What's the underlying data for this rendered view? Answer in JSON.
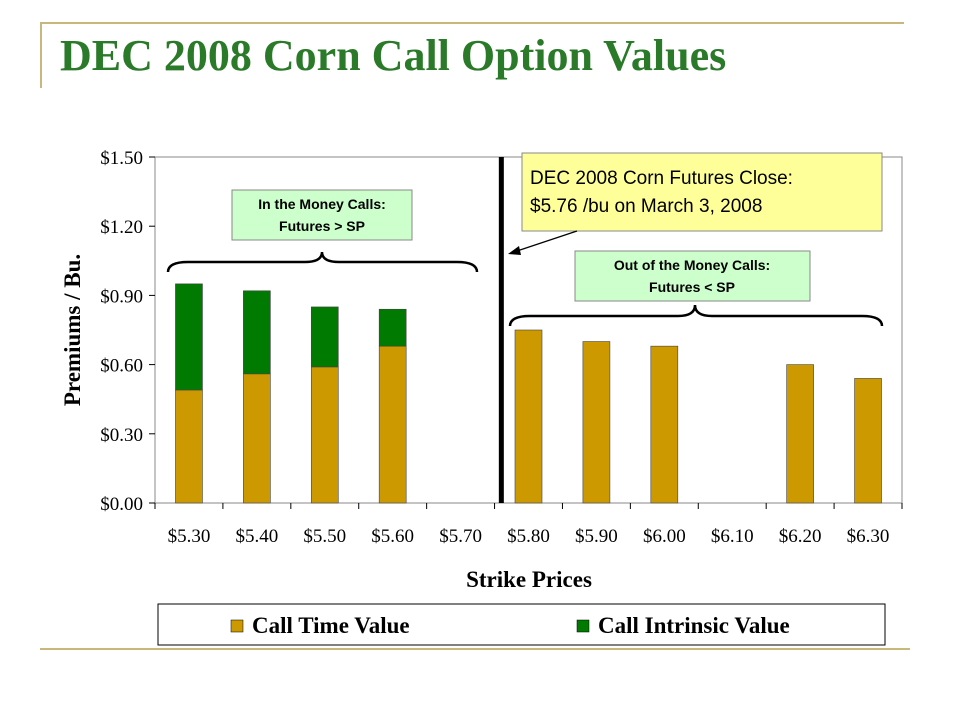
{
  "slide": {
    "title": "DEC 2008 Corn Call Option Values"
  },
  "colors": {
    "title": "#2a7a2a",
    "time_value": "#cc9900",
    "intrinsic_value": "#007a00",
    "callout_yellow": "#ffff99",
    "callout_green": "#ccffcc",
    "accent_line": "#c8b97a"
  },
  "chart_data": {
    "type": "bar",
    "stacked": true,
    "categories": [
      "$5.30",
      "$5.40",
      "$5.50",
      "$5.60",
      "$5.70",
      "$5.80",
      "$5.90",
      "$6.00",
      "$6.10",
      "$6.20",
      "$6.30"
    ],
    "series": [
      {
        "name": "Call Time Value",
        "values": [
          0.49,
          0.56,
          0.59,
          0.68,
          0,
          0.75,
          0.7,
          0.68,
          0,
          0.6,
          0.54
        ]
      },
      {
        "name": "Call Intrinsic Value",
        "values": [
          0.46,
          0.36,
          0.26,
          0.16,
          0,
          0,
          0,
          0,
          0,
          0,
          0
        ]
      }
    ],
    "xlabel": "Strike Prices",
    "ylabel": "Premiums / Bu.",
    "ylim": [
      0,
      1.5
    ],
    "yticks": [
      "$0.00",
      "$0.30",
      "$0.60",
      "$0.90",
      "$1.20",
      "$1.50"
    ],
    "ytick_values": [
      0,
      0.3,
      0.6,
      0.9,
      1.2,
      1.5
    ],
    "grid": false,
    "legend_position": "bottom",
    "futures_close_marker": 5.76,
    "annotations": {
      "futures_close_line1": "DEC 2008 Corn Futures Close:",
      "futures_close_line2": "$5.76 /bu on March 3, 2008",
      "itm_line1": "In the Money Calls:",
      "itm_line2": "Futures > SP",
      "otm_line1": "Out of the Money Calls:",
      "otm_line2": "Futures < SP"
    }
  }
}
